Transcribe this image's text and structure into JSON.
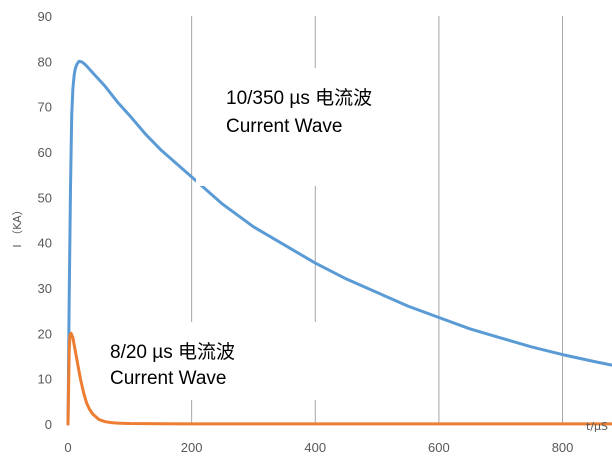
{
  "chart_data": {
    "type": "line",
    "title": "",
    "xlabel": "t/µS",
    "ylabel": "I （KA）",
    "xlim": [
      0,
      880
    ],
    "ylim": [
      0,
      90
    ],
    "x_ticks": [
      0,
      200,
      400,
      600,
      800
    ],
    "x_tick_labels": [
      "0",
      "200",
      "400",
      "600",
      "800"
    ],
    "y_ticks": [
      0,
      10,
      20,
      30,
      40,
      50,
      60,
      70,
      80,
      90
    ],
    "y_tick_labels": [
      "0",
      "10",
      "20",
      "30",
      "40",
      "50",
      "60",
      "70",
      "80",
      "90"
    ],
    "grid": {
      "vertical": true,
      "horizontal": false
    },
    "legend": "none",
    "series": [
      {
        "color": "#5B9BD5",
        "x": [
          0,
          2,
          4,
          6,
          8,
          10,
          12,
          15,
          18,
          22,
          26,
          30,
          40,
          60,
          80,
          100,
          125,
          150,
          200,
          250,
          300,
          350,
          400,
          450,
          500,
          550,
          600,
          650,
          700,
          750,
          800,
          850,
          880
        ],
        "y": [
          0,
          28,
          52,
          68,
          74,
          77,
          78.5,
          79.5,
          80,
          79.9,
          79.5,
          79,
          77.5,
          74.5,
          71,
          68,
          64,
          60.5,
          54.5,
          48.5,
          43.5,
          39.5,
          35.5,
          32,
          29,
          26,
          23.5,
          21,
          19,
          17,
          15.3,
          13.8,
          13
        ]
      },
      {
        "color": "#ED7D31",
        "x": [
          0,
          1,
          2,
          3,
          5,
          8,
          12,
          16,
          20,
          25,
          30,
          35,
          40,
          50,
          60,
          70,
          80,
          100,
          150,
          200,
          300,
          400,
          500,
          600,
          700,
          800,
          880
        ],
        "y": [
          0,
          8,
          16,
          19.5,
          20,
          19,
          16,
          13,
          10,
          7,
          4.7,
          3.2,
          2.2,
          1,
          0.5,
          0.3,
          0.2,
          0.1,
          0.05,
          0.03,
          0.02,
          0.02,
          0.02,
          0.02,
          0.02,
          0.02,
          0.02
        ]
      }
    ],
    "annotations": [
      {
        "lines": [
          "10/350 µs  电流波",
          "Current Wave"
        ]
      },
      {
        "lines": [
          "8/20 µs 电流波",
          "Current Wave"
        ]
      }
    ]
  }
}
